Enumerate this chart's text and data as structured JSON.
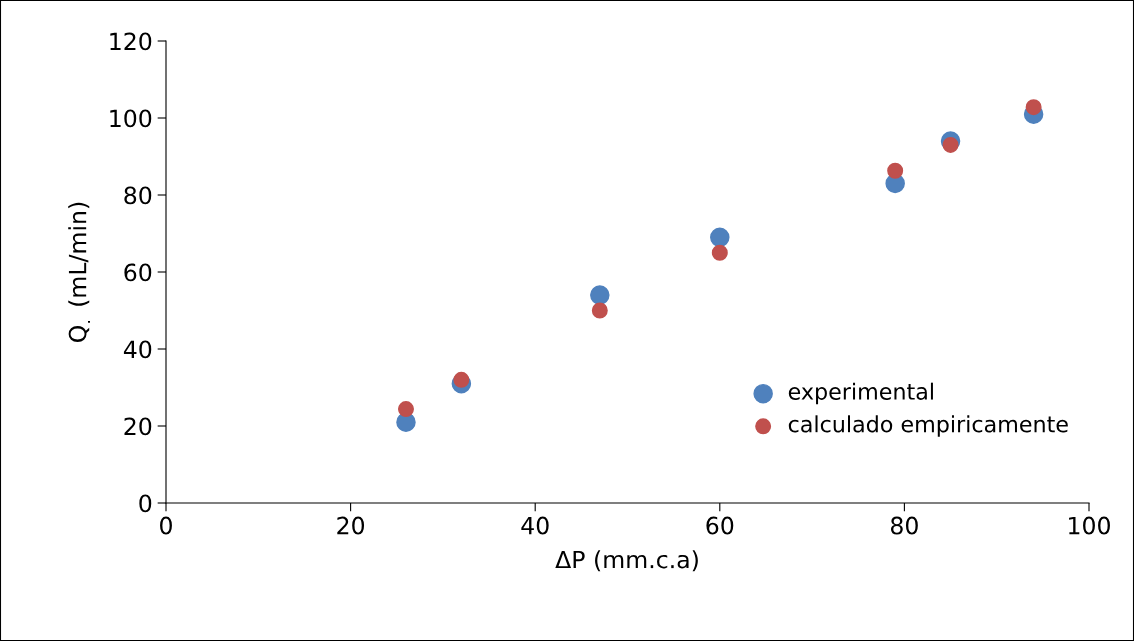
{
  "chart_data": {
    "type": "scatter",
    "xlabel": "ΔP (mm.c.a)",
    "ylabel": "Q$_{.}$ (mL/min)",
    "x": [
      26,
      32,
      47,
      60,
      79,
      85,
      94
    ],
    "series": [
      {
        "name": "experimental",
        "color": "#4f81bd",
        "values": [
          21,
          31,
          54,
          69,
          83,
          94,
          101
        ]
      },
      {
        "name": "calculado empiricamente",
        "color": "#c0504d",
        "values": [
          24.4,
          32,
          50,
          65,
          86.3,
          93,
          102.8
        ]
      }
    ],
    "xlim": [
      0,
      100
    ],
    "xticks": [
      0,
      20,
      40,
      60,
      80,
      100
    ],
    "ylim": [
      0,
      120
    ],
    "yticks": [
      0,
      20,
      40,
      60,
      80,
      100,
      120
    ],
    "grid": false,
    "legend": "bottom right",
    "marker": "circle"
  }
}
